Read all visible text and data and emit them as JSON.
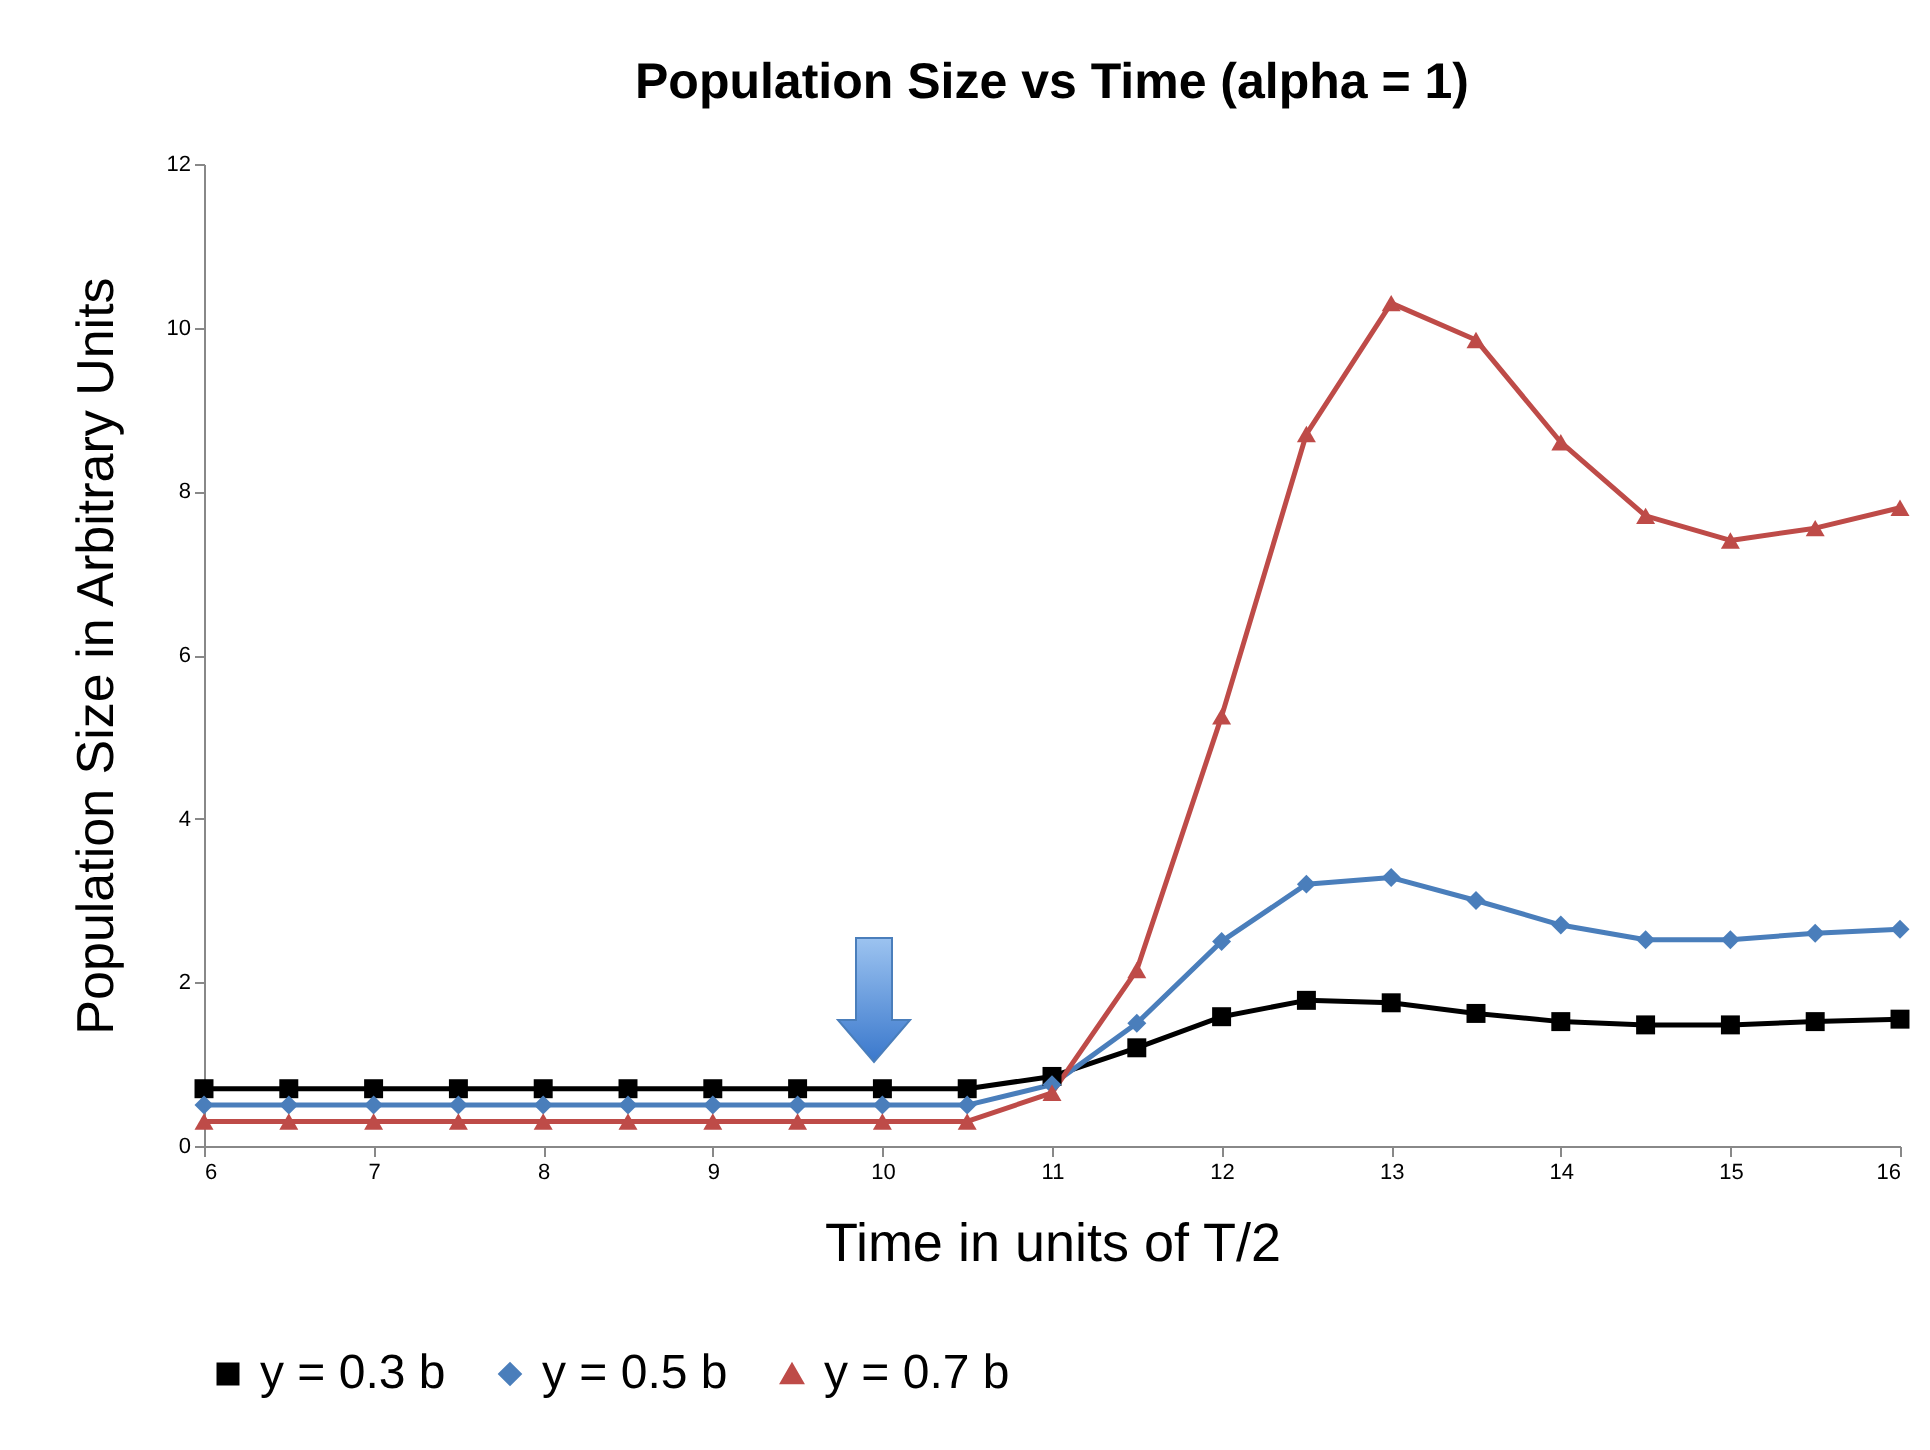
{
  "chart_data": {
    "type": "line",
    "title": "Population Size vs Time (alpha = 1)",
    "xlabel": "Time in units of T/2",
    "ylabel": "Population Size in Arbitrary Units",
    "x": [
      6,
      6.5,
      7,
      7.5,
      8,
      8.5,
      9,
      9.5,
      10,
      10.5,
      11,
      11.5,
      12,
      12.5,
      13,
      13.5,
      14,
      14.5,
      15,
      15.5,
      16
    ],
    "xlim": [
      6,
      16
    ],
    "xticks": [
      6,
      7,
      8,
      9,
      10,
      11,
      12,
      13,
      14,
      15,
      16
    ],
    "ylim": [
      0,
      12
    ],
    "yticks": [
      0,
      2,
      4,
      6,
      8,
      10,
      12
    ],
    "grid": false,
    "legend": "bottom",
    "line_style": "solid",
    "series": [
      {
        "name": "y = 0.3 b",
        "color": "#000000",
        "marker": "square",
        "values": [
          0.7,
          0.7,
          0.7,
          0.7,
          0.7,
          0.7,
          0.7,
          0.7,
          0.7,
          0.7,
          0.85,
          1.2,
          1.58,
          1.78,
          1.75,
          1.62,
          1.52,
          1.48,
          1.48,
          1.52,
          1.55
        ]
      },
      {
        "name": "y = 0.5 b",
        "color": "#4a7ebb",
        "marker": "diamond",
        "values": [
          0.5,
          0.5,
          0.5,
          0.5,
          0.5,
          0.5,
          0.5,
          0.5,
          0.5,
          0.5,
          0.75,
          1.5,
          2.5,
          3.2,
          3.28,
          3.0,
          2.7,
          2.52,
          2.52,
          2.6,
          2.65
        ]
      },
      {
        "name": "y = 0.7 b",
        "color": "#be4b48",
        "marker": "triangle",
        "values": [
          0.3,
          0.3,
          0.3,
          0.3,
          0.3,
          0.3,
          0.3,
          0.3,
          0.3,
          0.3,
          0.65,
          2.15,
          5.25,
          8.7,
          10.3,
          9.85,
          8.6,
          7.7,
          7.4,
          7.55,
          7.8
        ]
      }
    ]
  }
}
